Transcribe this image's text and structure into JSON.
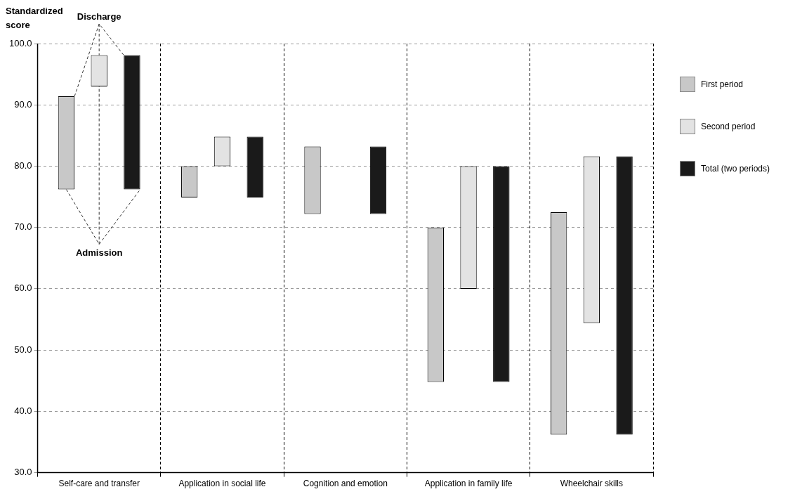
{
  "chart_data": {
    "type": "bar",
    "ylabel": "Standardized score",
    "categories": [
      "Self-care and transfer",
      "Application in social life",
      "Cognition and emotion",
      "Application in family life",
      "Wheelchair skills"
    ],
    "series": [
      {
        "name": "First period",
        "color": "#c8c8c8",
        "base": [
          76.2,
          74.9,
          72.2,
          44.8,
          36.2
        ],
        "values": [
          15.2,
          5.1,
          11.0,
          25.2,
          36.3
        ]
      },
      {
        "name": "Second period",
        "color": "#e3e3e3",
        "base": [
          93.0,
          80.0,
          null,
          60.0,
          54.4
        ],
        "values": [
          5.1,
          4.8,
          null,
          20.0,
          27.2
        ]
      },
      {
        "name": "Total (two periods)",
        "color": "#1a1a1a",
        "base": [
          76.2,
          74.9,
          72.2,
          44.8,
          36.2
        ],
        "values": [
          21.9,
          9.9,
          11.0,
          35.2,
          45.4
        ]
      }
    ],
    "ylim": [
      30,
      100
    ],
    "yticks": [
      {
        "value": 30,
        "label": "30.0"
      },
      {
        "value": 40,
        "label": "40.0"
      },
      {
        "value": 50,
        "label": "50.0"
      },
      {
        "value": 60,
        "label": "60.0"
      },
      {
        "value": 70,
        "label": "70.0"
      },
      {
        "value": 80,
        "label": "80.0"
      },
      {
        "value": 90,
        "label": "90.0"
      },
      {
        "value": 100,
        "label": "100.0"
      }
    ],
    "annotations": [
      {
        "text": "Discharge",
        "x": "Self-care and transfer",
        "y": 98.1
      },
      {
        "text": "Admission",
        "x": "Self-care and transfer"
      }
    ],
    "grid": true,
    "legend": "right"
  }
}
